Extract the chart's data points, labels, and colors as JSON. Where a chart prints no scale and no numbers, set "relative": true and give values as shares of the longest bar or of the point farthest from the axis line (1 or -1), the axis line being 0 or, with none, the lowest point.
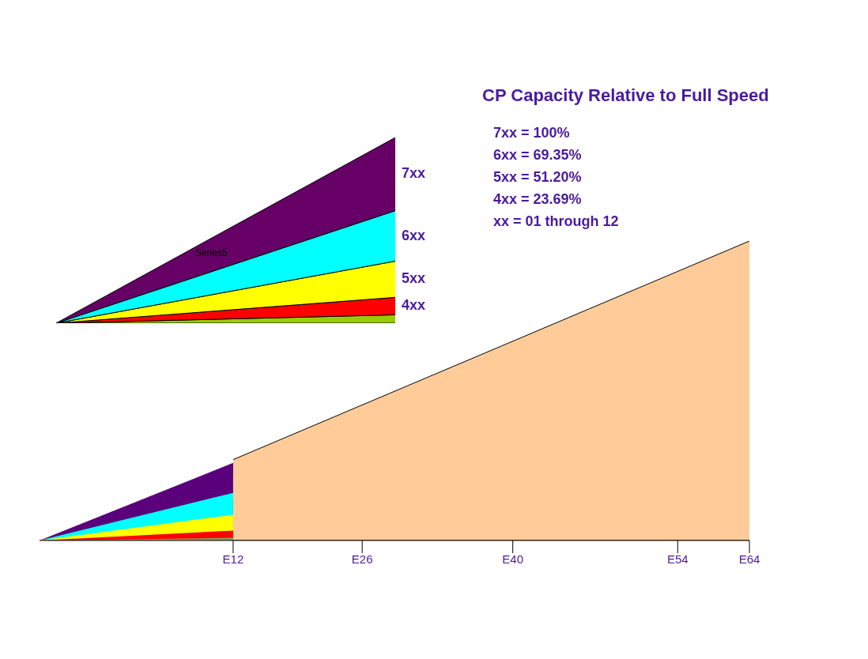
{
  "chart_data": [
    {
      "type": "area",
      "relative": true,
      "stacked": true,
      "tick_labels": false,
      "categories": [
        null,
        null
      ],
      "annotations": [
        "Series5"
      ],
      "series": [
        {
          "color": "#99cc00",
          "values": [
            0,
            0.045
          ]
        },
        {
          "name": "4xx",
          "color": "#ff0000",
          "values": [
            0,
            0.094
          ]
        },
        {
          "name": "5xx",
          "color": "#ffff00",
          "values": [
            0,
            0.195
          ]
        },
        {
          "name": "6xx",
          "color": "#00ffff",
          "values": [
            0,
            0.272
          ]
        },
        {
          "name": "7xx",
          "color": "#660066",
          "values": [
            0,
            0.394
          ]
        }
      ]
    },
    {
      "type": "other",
      "title": "CP Capacity Relative to Full Speed",
      "annotations": [
        "7xx = 100%",
        "6xx = 69.35%",
        "5xx = 51.20%",
        "4xx = 23.69%",
        "xx = 01 through 12"
      ]
    },
    {
      "type": "area",
      "relative": true,
      "tick_labels": "x",
      "categories": [
        null,
        null,
        null,
        null,
        null,
        null,
        null,
        null,
        null,
        null,
        null,
        null,
        null,
        null,
        null,
        null,
        null,
        null,
        null,
        null,
        null,
        null,
        null,
        null,
        null,
        null,
        null,
        "E12",
        null,
        null,
        null,
        null,
        null,
        null,
        null,
        null,
        null,
        null,
        null,
        null,
        null,
        null,
        null,
        null,
        null,
        "E26",
        null,
        null,
        null,
        null,
        null,
        null,
        null,
        null,
        null,
        null,
        null,
        null,
        null,
        null,
        null,
        null,
        null,
        null,
        null,
        null,
        "E40",
        null,
        null,
        null,
        null,
        null,
        null,
        null,
        null,
        null,
        null,
        null,
        null,
        null,
        null,
        null,
        null,
        null,
        null,
        null,
        null,
        null,
        null,
        "E54",
        null,
        null,
        null,
        null,
        null,
        null,
        null,
        null,
        null,
        "E64"
      ],
      "series": [
        {
          "color": "#ffcc99",
          "values": [
            null,
            null,
            null,
            null,
            null,
            null,
            null,
            null,
            null,
            null,
            null,
            null,
            null,
            null,
            null,
            null,
            null,
            null,
            null,
            null,
            null,
            null,
            null,
            null,
            null,
            null,
            null,
            0.27,
            null,
            null,
            null,
            null,
            null,
            null,
            null,
            null,
            null,
            null,
            null,
            null,
            null,
            null,
            null,
            null,
            null,
            null,
            null,
            null,
            null,
            null,
            null,
            null,
            null,
            null,
            null,
            null,
            null,
            null,
            null,
            null,
            null,
            null,
            null,
            null,
            null,
            null,
            null,
            null,
            null,
            null,
            null,
            null,
            null,
            null,
            null,
            null,
            null,
            null,
            null,
            null,
            null,
            null,
            null,
            null,
            null,
            null,
            null,
            null,
            null,
            null,
            null,
            null,
            null,
            null,
            null,
            null,
            null,
            null,
            null,
            1
          ]
        },
        {
          "color": "#5a007a",
          "values": [
            0,
            null,
            null,
            null,
            null,
            null,
            null,
            null,
            null,
            null,
            null,
            null,
            null,
            null,
            null,
            null,
            null,
            null,
            null,
            null,
            null,
            null,
            null,
            null,
            null,
            null,
            null,
            0.259,
            null,
            null,
            null,
            null,
            null,
            null,
            null,
            null,
            null,
            null,
            null,
            null,
            null,
            null,
            null,
            null,
            null,
            null,
            null,
            null,
            null,
            null,
            null,
            null,
            null,
            null,
            null,
            null,
            null,
            null,
            null,
            null,
            null,
            null,
            null,
            null,
            null,
            null,
            null,
            null,
            null,
            null,
            null,
            null,
            null,
            null,
            null,
            null,
            null,
            null,
            null,
            null,
            null,
            null,
            null,
            null,
            null,
            null,
            null,
            null,
            null,
            null,
            null,
            null,
            null,
            null,
            null,
            null,
            null,
            null,
            null,
            null
          ]
        },
        {
          "color": "#00ffff",
          "values": [
            0,
            null,
            null,
            null,
            null,
            null,
            null,
            null,
            null,
            null,
            null,
            null,
            null,
            null,
            null,
            null,
            null,
            null,
            null,
            null,
            null,
            null,
            null,
            null,
            null,
            null,
            null,
            0.159,
            null,
            null,
            null,
            null,
            null,
            null,
            null,
            null,
            null,
            null,
            null,
            null,
            null,
            null,
            null,
            null,
            null,
            null,
            null,
            null,
            null,
            null,
            null,
            null,
            null,
            null,
            null,
            null,
            null,
            null,
            null,
            null,
            null,
            null,
            null,
            null,
            null,
            null,
            null,
            null,
            null,
            null,
            null,
            null,
            null,
            null,
            null,
            null,
            null,
            null,
            null,
            null,
            null,
            null,
            null,
            null,
            null,
            null,
            null,
            null,
            null,
            null,
            null,
            null,
            null,
            null,
            null,
            null,
            null,
            null,
            null,
            null
          ]
        },
        {
          "color": "#ffff00",
          "values": [
            0,
            null,
            null,
            null,
            null,
            null,
            null,
            null,
            null,
            null,
            null,
            null,
            null,
            null,
            null,
            null,
            null,
            null,
            null,
            null,
            null,
            null,
            null,
            null,
            null,
            null,
            null,
            0.086,
            null,
            null,
            null,
            null,
            null,
            null,
            null,
            null,
            null,
            null,
            null,
            null,
            null,
            null,
            null,
            null,
            null,
            null,
            null,
            null,
            null,
            null,
            null,
            null,
            null,
            null,
            null,
            null,
            null,
            null,
            null,
            null,
            null,
            null,
            null,
            null,
            null,
            null,
            null,
            null,
            null,
            null,
            null,
            null,
            null,
            null,
            null,
            null,
            null,
            null,
            null,
            null,
            null,
            null,
            null,
            null,
            null,
            null,
            null,
            null,
            null,
            null,
            null,
            null,
            null,
            null,
            null,
            null,
            null,
            null,
            null,
            null
          ]
        },
        {
          "color": "#ff0000",
          "values": [
            0,
            null,
            null,
            null,
            null,
            null,
            null,
            null,
            null,
            null,
            null,
            null,
            null,
            null,
            null,
            null,
            null,
            null,
            null,
            null,
            null,
            null,
            null,
            null,
            null,
            null,
            null,
            0.033,
            null,
            null,
            null,
            null,
            null,
            null,
            null,
            null,
            null,
            null,
            null,
            null,
            null,
            null,
            null,
            null,
            null,
            null,
            null,
            null,
            null,
            null,
            null,
            null,
            null,
            null,
            null,
            null,
            null,
            null,
            null,
            null,
            null,
            null,
            null,
            null,
            null,
            null,
            null,
            null,
            null,
            null,
            null,
            null,
            null,
            null,
            null,
            null,
            null,
            null,
            null,
            null,
            null,
            null,
            null,
            null,
            null,
            null,
            null,
            null,
            null,
            null,
            null,
            null,
            null,
            null,
            null,
            null,
            null,
            null,
            null,
            null
          ]
        },
        {
          "color": "#8a9a5b",
          "values": [
            0,
            null,
            null,
            null,
            null,
            null,
            null,
            null,
            null,
            null,
            null,
            null,
            null,
            null,
            null,
            null,
            null,
            null,
            null,
            null,
            null,
            null,
            null,
            null,
            null,
            null,
            null,
            0.009,
            null,
            null,
            null,
            null,
            null,
            null,
            null,
            null,
            null,
            null,
            null,
            null,
            null,
            null,
            null,
            null,
            null,
            null,
            null,
            null,
            null,
            null,
            null,
            null,
            null,
            null,
            null,
            null,
            null,
            null,
            null,
            null,
            null,
            null,
            null,
            null,
            null,
            null,
            null,
            null,
            null,
            null,
            null,
            null,
            null,
            null,
            null,
            null,
            null,
            null,
            null,
            null,
            null,
            null,
            null,
            null,
            null,
            null,
            null,
            null,
            null,
            null,
            null,
            null,
            null,
            null,
            null,
            null,
            null,
            null,
            null,
            null
          ]
        }
      ]
    }
  ]
}
